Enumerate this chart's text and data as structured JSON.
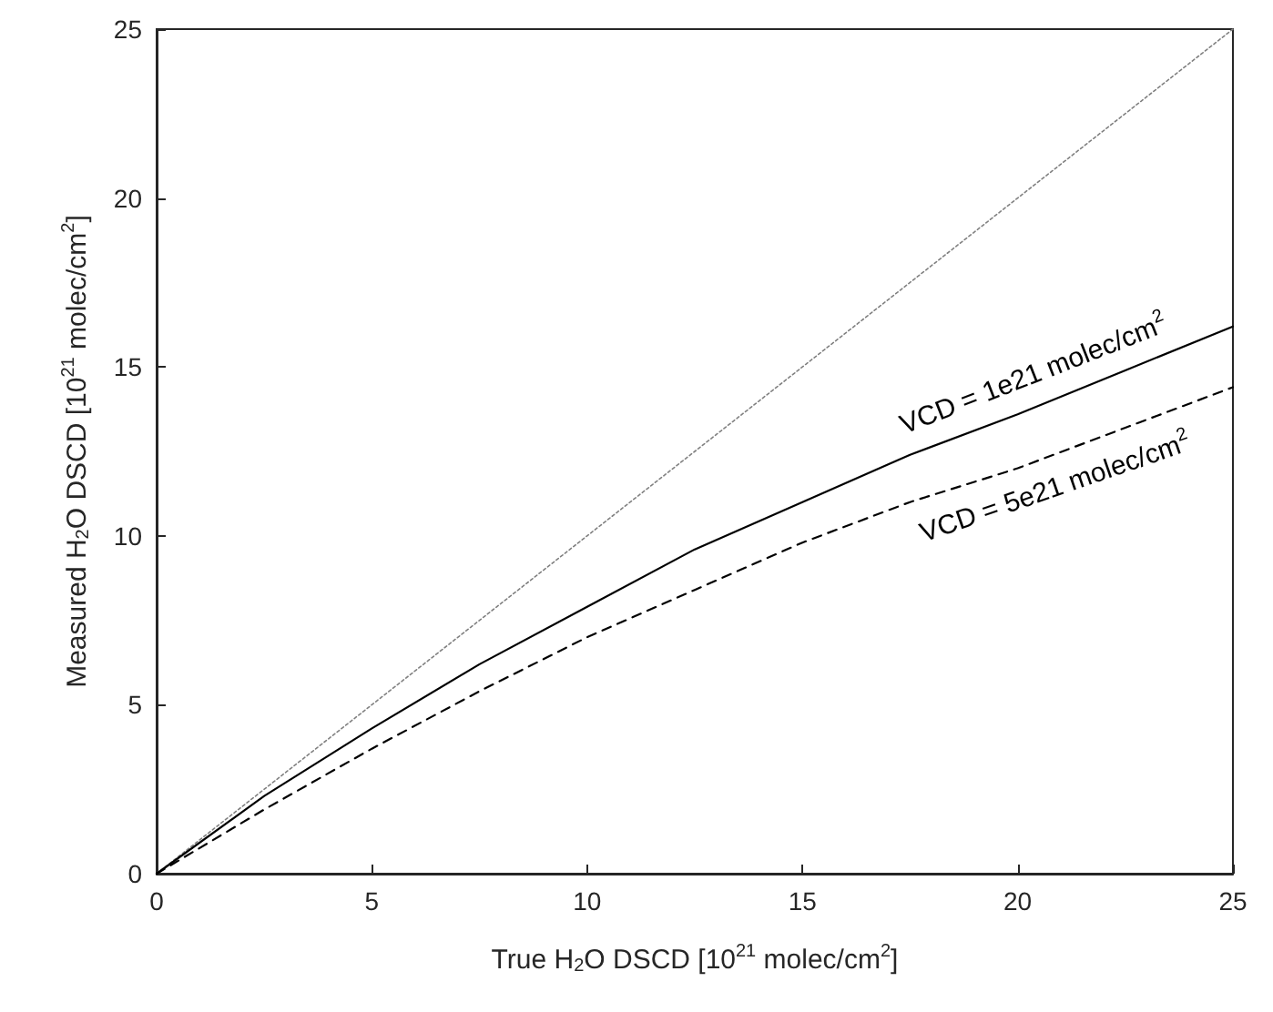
{
  "chart_data": {
    "type": "line",
    "xlabel": "True H$_{2}$O DSCD [10$^{21}$ molec/cm$^{2}$]",
    "ylabel": "Measured H$_{2}$O DSCD [10$^{21}$ molec/cm$^{2}$]",
    "x": [
      0,
      2.5,
      5,
      7.5,
      10,
      12.5,
      15,
      17.5,
      20,
      22.5,
      25
    ],
    "series": [
      {
        "color": "#808080",
        "line_style": "dotted",
        "values": [
          0,
          2.5,
          5,
          7.5,
          10,
          12.5,
          15,
          17.5,
          20,
          22.5,
          25
        ]
      },
      {
        "name": "VCD = 1e21 molec/cm$^{2}$",
        "color": "#000000",
        "line_style": "solid",
        "values": [
          0,
          2.3,
          4.3,
          6.2,
          7.9,
          9.6,
          11.0,
          12.4,
          13.6,
          14.9,
          16.2
        ]
      },
      {
        "name": "VCD = 5e21 molec/cm$^{2}$",
        "color": "#000000",
        "line_style": "dashed",
        "values": [
          0,
          1.9,
          3.7,
          5.4,
          7.0,
          8.4,
          9.8,
          11.0,
          12.0,
          13.2,
          14.4
        ]
      }
    ],
    "xlim": [
      0,
      25
    ],
    "ylim": [
      0,
      25
    ],
    "xticks": [
      0,
      5,
      10,
      15,
      20,
      25
    ],
    "yticks": [
      0,
      5,
      10,
      15,
      20,
      25
    ],
    "grid": false,
    "legend": false,
    "marker": "none"
  }
}
